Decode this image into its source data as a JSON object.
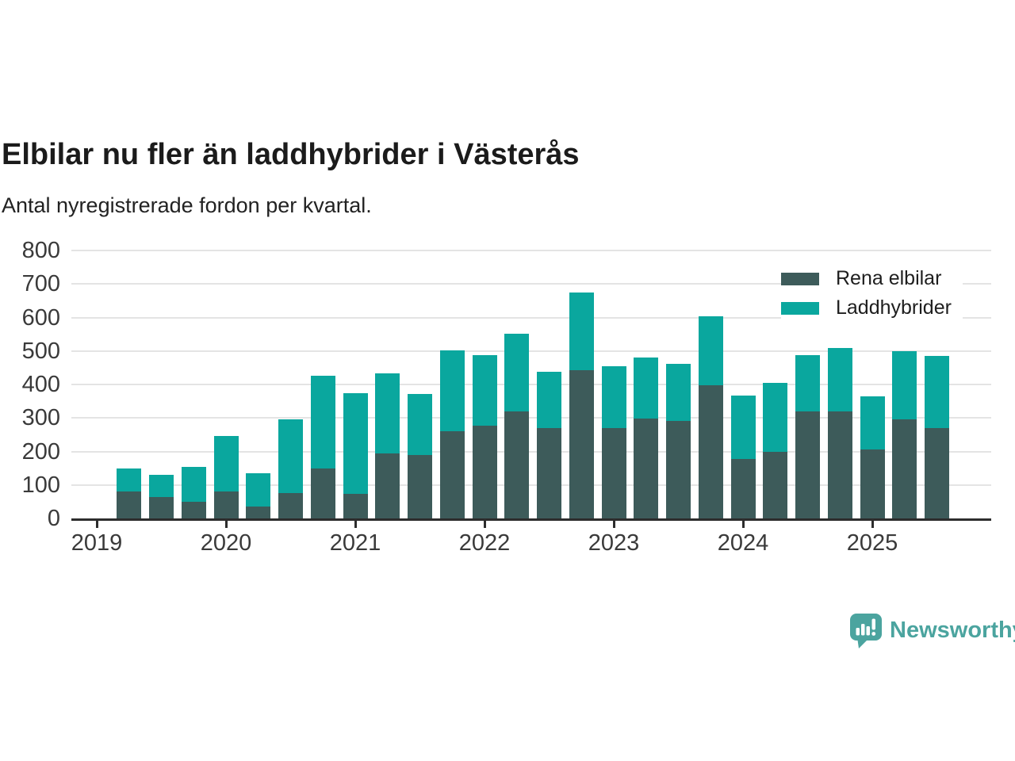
{
  "title": "Elbilar nu fler än laddhybrider i Västerås",
  "subtitle": "Antal nyregistrerade fordon per kvartal.",
  "colors": {
    "pure_ev": "#3d5b5a",
    "hybrid": "#0aa79e",
    "grid": "#e4e4e4",
    "axis": "#2d2d2d",
    "tick_text": "#3a3a3a",
    "logo": "#4ba49f"
  },
  "legend": [
    {
      "label": "Rena elbilar",
      "color_key": "pure_ev"
    },
    {
      "label": "Laddhybrider",
      "color_key": "hybrid"
    }
  ],
  "branding": {
    "name": "Newsworthy",
    "icon": "speech-bubble-bar-chart-icon"
  },
  "chart_data": {
    "type": "bar",
    "stacked": true,
    "title": "Elbilar nu fler än laddhybrider i Västerås",
    "subtitle": "Antal nyregistrerade fordon per kvartal.",
    "xlabel": "",
    "ylabel": "",
    "ylim": [
      0,
      800
    ],
    "y_ticks": [
      0,
      100,
      200,
      300,
      400,
      500,
      600,
      700,
      800
    ],
    "x_tick_labels": [
      "2019",
      "2020",
      "2021",
      "2022",
      "2023",
      "2024",
      "2025"
    ],
    "grid": "horizontal",
    "legend_position": "top-right",
    "categories": [
      "2019-Q2",
      "2019-Q3",
      "2019-Q4",
      "2020-Q1",
      "2020-Q2",
      "2020-Q3",
      "2020-Q4",
      "2021-Q1",
      "2021-Q2",
      "2021-Q3",
      "2021-Q4",
      "2022-Q1",
      "2022-Q2",
      "2022-Q3",
      "2022-Q4",
      "2023-Q1",
      "2023-Q2",
      "2023-Q3",
      "2023-Q4",
      "2024-Q1",
      "2024-Q2",
      "2024-Q3",
      "2024-Q4",
      "2025-Q1",
      "2025-Q2",
      "2025-Q3"
    ],
    "series": [
      {
        "name": "Rena elbilar",
        "values": [
          80,
          65,
          50,
          80,
          35,
          76,
          148,
          73,
          195,
          190,
          260,
          276,
          320,
          270,
          443,
          271,
          298,
          292,
          397,
          178,
          200,
          320,
          320,
          207,
          295,
          270
        ]
      },
      {
        "name": "Laddhybrider",
        "values": [
          70,
          65,
          103,
          166,
          100,
          220,
          277,
          300,
          238,
          181,
          241,
          212,
          231,
          167,
          232,
          184,
          182,
          169,
          206,
          188,
          205,
          168,
          188,
          158,
          205,
          215
        ]
      }
    ]
  }
}
